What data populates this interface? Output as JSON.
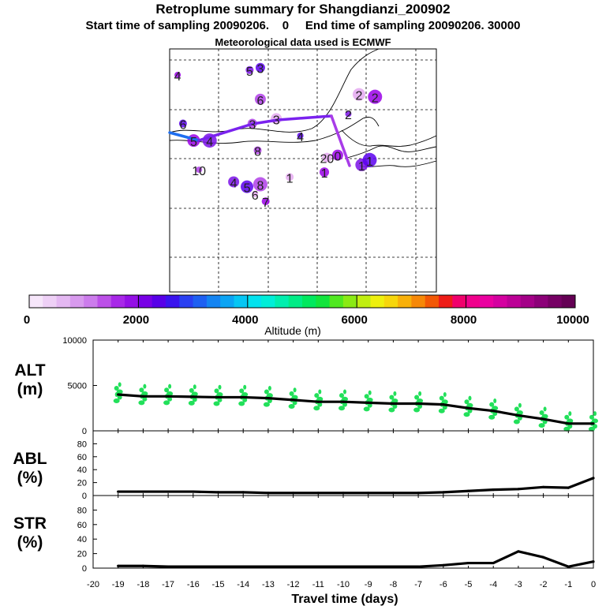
{
  "header": {
    "title": "Retroplume summary for Shangdianzi_200902",
    "sampling_line": "Start time of sampling 20090206.    0     End time of sampling 20090206. 30000",
    "met_line": "Meteorological data used is ECMWF"
  },
  "map": {
    "plume_labels": [
      {
        "text": "4",
        "lon": 0.03,
        "lat": 0.12
      },
      {
        "text": "5",
        "lon": 0.3,
        "lat": 0.1
      },
      {
        "text": "3",
        "lon": 0.34,
        "lat": 0.09
      },
      {
        "text": "6",
        "lon": 0.34,
        "lat": 0.22
      },
      {
        "text": "2",
        "lon": 0.71,
        "lat": 0.2
      },
      {
        "text": "2",
        "lon": 0.77,
        "lat": 0.21
      },
      {
        "text": "2",
        "lon": 0.67,
        "lat": 0.28
      },
      {
        "text": "6",
        "lon": 0.05,
        "lat": 0.32
      },
      {
        "text": "3",
        "lon": 0.31,
        "lat": 0.32
      },
      {
        "text": "3",
        "lon": 0.4,
        "lat": 0.3
      },
      {
        "text": "5",
        "lon": 0.09,
        "lat": 0.39
      },
      {
        "text": "4",
        "lon": 0.15,
        "lat": 0.39
      },
      {
        "text": "4",
        "lon": 0.49,
        "lat": 0.37
      },
      {
        "text": "8",
        "lon": 0.33,
        "lat": 0.43
      },
      {
        "text": "20",
        "lon": 0.59,
        "lat": 0.46
      },
      {
        "text": "0",
        "lon": 0.63,
        "lat": 0.45
      },
      {
        "text": "1",
        "lon": 0.72,
        "lat": 0.49
      },
      {
        "text": "1",
        "lon": 0.75,
        "lat": 0.47
      },
      {
        "text": "10",
        "lon": 0.11,
        "lat": 0.51
      },
      {
        "text": "1",
        "lon": 0.45,
        "lat": 0.54
      },
      {
        "text": "1",
        "lon": 0.58,
        "lat": 0.52
      },
      {
        "text": "4",
        "lon": 0.24,
        "lat": 0.56
      },
      {
        "text": "5",
        "lon": 0.29,
        "lat": 0.58
      },
      {
        "text": "8",
        "lon": 0.34,
        "lat": 0.57
      },
      {
        "text": "6",
        "lon": 0.32,
        "lat": 0.61
      },
      {
        "text": "7",
        "lon": 0.36,
        "lat": 0.64
      }
    ]
  },
  "colorbar": {
    "tick_labels": [
      "0",
      "2000",
      "4000",
      "6000",
      "8000",
      "10000"
    ],
    "label": "Altitude (m)",
    "colors": [
      "#f6e6fa",
      "#eed0f6",
      "#e4b8f2",
      "#d89aee",
      "#cc7cec",
      "#bc50e8",
      "#a828e8",
      "#9410e6",
      "#7800e6",
      "#5800e8",
      "#3a14ee",
      "#2a40f2",
      "#1e60f2",
      "#1484f2",
      "#0ca4f4",
      "#06c6f4",
      "#02e2ee",
      "#00eed8",
      "#00eeae",
      "#00ec86",
      "#00e85e",
      "#12e43c",
      "#50e820",
      "#8aea14",
      "#c0ee10",
      "#eef00e",
      "#f6d60c",
      "#f8b00a",
      "#f68808",
      "#f25806",
      "#ee1c18",
      "#f0006c",
      "#f0008c",
      "#ea00a0",
      "#d400a0",
      "#bc0096",
      "#a40088",
      "#8c0078",
      "#760064",
      "#640054"
    ]
  },
  "chart_data": [
    {
      "type": "line",
      "panel": "ALT",
      "ylabel_lines": [
        "ALT",
        "(m)"
      ],
      "x": [
        -19,
        -18,
        -17,
        -16,
        -15,
        -14,
        -13,
        -12,
        -11,
        -10,
        -9,
        -8,
        -7,
        -6,
        -5,
        -4,
        -3,
        -2,
        -1,
        0
      ],
      "values": [
        4000,
        3800,
        3800,
        3750,
        3700,
        3700,
        3600,
        3400,
        3200,
        3200,
        3100,
        3000,
        3000,
        2900,
        2500,
        2200,
        1700,
        1300,
        800,
        800
      ],
      "ylim": [
        0,
        10000
      ],
      "yticks": [
        0,
        5000,
        10000
      ],
      "scatter_color": "#22e05a",
      "line_color": "#000000"
    },
    {
      "type": "line",
      "panel": "ABL",
      "ylabel_lines": [
        "ABL",
        "(%)"
      ],
      "x": [
        -19,
        -18,
        -17,
        -16,
        -15,
        -14,
        -13,
        -12,
        -11,
        -10,
        -9,
        -8,
        -7,
        -6,
        -5,
        -4,
        -3,
        -2,
        -1,
        0
      ],
      "values": [
        6,
        6,
        6,
        6,
        5,
        5,
        4,
        4,
        4,
        4,
        4,
        4,
        4,
        5,
        7,
        9,
        10,
        13,
        12,
        27
      ],
      "ylim": [
        0,
        100
      ],
      "yticks": [
        0,
        20,
        40,
        60,
        80
      ]
    },
    {
      "type": "line",
      "panel": "STR",
      "ylabel_lines": [
        "STR",
        "(%)"
      ],
      "x": [
        -19,
        -18,
        -17,
        -16,
        -15,
        -14,
        -13,
        -12,
        -11,
        -10,
        -9,
        -8,
        -7,
        -6,
        -5,
        -4,
        -3,
        -2,
        -1,
        0
      ],
      "values": [
        3,
        3,
        2,
        2,
        2,
        2,
        2,
        2,
        2,
        2,
        2,
        2,
        2,
        4,
        7,
        7,
        23,
        15,
        2,
        9
      ],
      "ylim": [
        0,
        100
      ],
      "yticks": [
        0,
        20,
        40,
        60,
        80
      ]
    }
  ],
  "x_axis": {
    "ticks": [
      -20,
      -19,
      -18,
      -17,
      -16,
      -15,
      -14,
      -13,
      -12,
      -11,
      -10,
      -9,
      -8,
      -7,
      -6,
      -5,
      -4,
      -3,
      -2,
      -1,
      0
    ],
    "label": "Travel time (days)"
  }
}
